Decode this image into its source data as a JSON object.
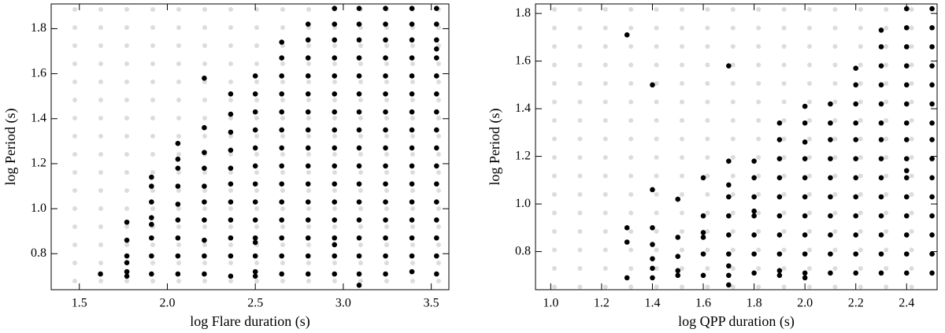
{
  "chart_data": [
    {
      "type": "scatter",
      "xlabel": "log Flare duration (s)",
      "ylabel": "log Period (s)",
      "color": "#000000",
      "xlim": [
        1.34,
        3.6
      ],
      "ylim": [
        0.64,
        1.91
      ],
      "xticks": [
        1.5,
        {
          "value": 2,
          "label": "2.0"
        },
        2.5,
        {
          "value": 3,
          "label": "3.0"
        },
        3.5
      ],
      "yticks": [
        0.8,
        {
          "value": 1,
          "label": "1.0"
        },
        1.2,
        1.4,
        1.6,
        1.8
      ],
      "series": [
        {
          "x": [
            1.62
          ],
          "values": [
            0.71
          ]
        },
        {
          "x": [
            1.77,
            1.77,
            1.77,
            1.77,
            1.77,
            1.77
          ],
          "values": [
            0.7,
            0.72,
            0.76,
            0.79,
            0.86,
            0.94
          ]
        },
        {
          "x": [
            1.91,
            1.91,
            1.91,
            1.91,
            1.91,
            1.91,
            1.91,
            1.91
          ],
          "values": [
            0.71,
            0.79,
            0.87,
            0.93,
            0.96,
            1.03,
            1.1,
            1.14
          ]
        },
        {
          "x": [
            2.06,
            2.06,
            2.06,
            2.06,
            2.06,
            2.06,
            2.06,
            2.06,
            2.06
          ],
          "values": [
            0.71,
            0.79,
            0.87,
            0.95,
            1.02,
            1.1,
            1.18,
            1.22,
            1.29
          ]
        },
        {
          "x": [
            2.21,
            2.21,
            2.21,
            2.21,
            2.21,
            2.21,
            2.21,
            2.21,
            2.21,
            2.21
          ],
          "values": [
            0.71,
            0.79,
            0.86,
            0.95,
            1.03,
            1.1,
            1.18,
            1.25,
            1.36,
            1.58
          ]
        },
        {
          "x": [
            2.36,
            2.36,
            2.36,
            2.36,
            2.36,
            2.36,
            2.36,
            2.36,
            2.36,
            2.36,
            2.36
          ],
          "values": [
            0.7,
            0.79,
            0.87,
            0.95,
            1.03,
            1.11,
            1.18,
            1.26,
            1.34,
            1.42,
            1.51
          ]
        },
        {
          "x": [
            2.5,
            2.5,
            2.5,
            2.5,
            2.5,
            2.5,
            2.5,
            2.5,
            2.5,
            2.5,
            2.5,
            2.5,
            2.5,
            2.5
          ],
          "values": [
            0.7,
            0.72,
            0.79,
            0.85,
            0.87,
            0.95,
            1.03,
            1.11,
            1.19,
            1.27,
            1.35,
            1.43,
            1.51,
            1.59
          ]
        },
        {
          "x": [
            2.65,
            2.65,
            2.65,
            2.65,
            2.65,
            2.65,
            2.65,
            2.65,
            2.65,
            2.65,
            2.65,
            2.65,
            2.65,
            2.65
          ],
          "values": [
            0.71,
            0.79,
            0.87,
            0.95,
            1.03,
            1.11,
            1.19,
            1.27,
            1.35,
            1.43,
            1.51,
            1.59,
            1.67,
            1.74
          ]
        },
        {
          "x": [
            2.8,
            2.8,
            2.8,
            2.8,
            2.8,
            2.8,
            2.8,
            2.8,
            2.8,
            2.8,
            2.8,
            2.8,
            2.8,
            2.8,
            2.8
          ],
          "values": [
            0.71,
            0.79,
            0.87,
            0.95,
            1.03,
            1.11,
            1.19,
            1.27,
            1.35,
            1.43,
            1.51,
            1.59,
            1.67,
            1.75,
            1.82
          ]
        },
        {
          "x": [
            2.95,
            2.95,
            2.95,
            2.95,
            2.95,
            2.95,
            2.95,
            2.95,
            2.95,
            2.95,
            2.95,
            2.95,
            2.95,
            2.95,
            2.95,
            2.95,
            2.95
          ],
          "values": [
            0.71,
            0.79,
            0.84,
            0.87,
            0.95,
            1.03,
            1.11,
            1.19,
            1.27,
            1.35,
            1.43,
            1.51,
            1.59,
            1.67,
            1.75,
            1.82,
            1.89
          ]
        },
        {
          "x": [
            3.09,
            3.09,
            3.09,
            3.09,
            3.09,
            3.09,
            3.09,
            3.09,
            3.09,
            3.09,
            3.09,
            3.09,
            3.09,
            3.09,
            3.09,
            3.09,
            3.09
          ],
          "values": [
            0.66,
            0.71,
            0.79,
            0.87,
            0.95,
            1.03,
            1.11,
            1.19,
            1.27,
            1.35,
            1.43,
            1.51,
            1.59,
            1.67,
            1.75,
            1.82,
            1.89
          ]
        },
        {
          "x": [
            3.24,
            3.24,
            3.24,
            3.24,
            3.24,
            3.24,
            3.24,
            3.24,
            3.24,
            3.24,
            3.24,
            3.24,
            3.24,
            3.24,
            3.24,
            3.24
          ],
          "values": [
            0.71,
            0.79,
            0.87,
            0.95,
            1.03,
            1.11,
            1.19,
            1.27,
            1.35,
            1.43,
            1.51,
            1.59,
            1.67,
            1.75,
            1.82,
            1.89
          ]
        },
        {
          "x": [
            3.39,
            3.39,
            3.39,
            3.39,
            3.39,
            3.39,
            3.39,
            3.39,
            3.39,
            3.39,
            3.39,
            3.39,
            3.39,
            3.39,
            3.39,
            3.39
          ],
          "values": [
            0.72,
            0.79,
            0.87,
            0.95,
            1.03,
            1.11,
            1.19,
            1.27,
            1.35,
            1.43,
            1.51,
            1.59,
            1.67,
            1.75,
            1.82,
            1.89
          ]
        },
        {
          "x": [
            3.53,
            3.53,
            3.53,
            3.53,
            3.53,
            3.53,
            3.53,
            3.53,
            3.53,
            3.53,
            3.53,
            3.53,
            3.53,
            3.53,
            3.53,
            3.53,
            3.53
          ],
          "values": [
            0.71,
            0.79,
            0.87,
            0.95,
            1.03,
            1.11,
            1.19,
            1.27,
            1.35,
            1.43,
            1.51,
            1.59,
            1.67,
            1.71,
            1.75,
            1.82,
            1.89
          ]
        }
      ]
    },
    {
      "type": "scatter",
      "xlabel": "log QPP duration (s)",
      "ylabel": "log Period (s)",
      "color": "#000000",
      "xlim": [
        0.94,
        2.52
      ],
      "ylim": [
        0.64,
        1.84
      ],
      "xticks": [
        {
          "value": 1,
          "label": "1.0"
        },
        1.2,
        1.4,
        1.6,
        1.8,
        {
          "value": 2,
          "label": "2.0"
        },
        2.2,
        2.4
      ],
      "yticks": [
        0.8,
        {
          "value": 1,
          "label": "1.0"
        },
        1.2,
        1.4,
        1.6,
        1.8
      ],
      "series": [
        {
          "x": [
            1.3,
            1.3,
            1.3,
            1.3
          ],
          "values": [
            0.69,
            0.84,
            0.9,
            1.71
          ]
        },
        {
          "x": [
            1.4,
            1.4,
            1.4,
            1.4,
            1.4,
            1.4,
            1.4
          ],
          "values": [
            0.69,
            0.73,
            0.77,
            0.83,
            0.9,
            1.06,
            1.5
          ]
        },
        {
          "x": [
            1.5,
            1.5,
            1.5,
            1.5,
            1.5
          ],
          "values": [
            0.7,
            0.72,
            0.78,
            0.86,
            1.02
          ]
        },
        {
          "x": [
            1.6,
            1.6,
            1.6,
            1.6,
            1.6,
            1.6
          ],
          "values": [
            0.7,
            0.79,
            0.86,
            0.88,
            0.95,
            1.11
          ]
        },
        {
          "x": [
            1.7,
            1.7,
            1.7,
            1.7,
            1.7,
            1.7,
            1.7,
            1.7,
            1.7,
            1.7
          ],
          "values": [
            0.66,
            0.7,
            0.74,
            0.79,
            0.87,
            0.95,
            1.03,
            1.08,
            1.18,
            1.58
          ]
        },
        {
          "x": [
            1.8,
            1.8,
            1.8,
            1.8,
            1.8,
            1.8,
            1.8,
            1.8
          ],
          "values": [
            0.71,
            0.79,
            0.87,
            0.95,
            0.97,
            1.03,
            1.11,
            1.18
          ]
        },
        {
          "x": [
            1.9,
            1.9,
            1.9,
            1.9,
            1.9,
            1.9,
            1.9,
            1.9,
            1.9,
            1.9
          ],
          "values": [
            0.7,
            0.72,
            0.79,
            0.87,
            0.95,
            1.03,
            1.11,
            1.19,
            1.27,
            1.34
          ]
        },
        {
          "x": [
            2,
            2,
            2,
            2,
            2,
            2,
            2,
            2,
            2,
            2,
            2
          ],
          "values": [
            0.69,
            0.71,
            0.79,
            0.87,
            0.95,
            1.03,
            1.11,
            1.19,
            1.26,
            1.34,
            1.41
          ]
        },
        {
          "x": [
            2.1,
            2.1,
            2.1,
            2.1,
            2.1,
            2.1,
            2.1,
            2.1,
            2.1,
            2.1
          ],
          "values": [
            0.71,
            0.79,
            0.87,
            0.95,
            1.03,
            1.11,
            1.19,
            1.27,
            1.34,
            1.42
          ]
        },
        {
          "x": [
            2.2,
            2.2,
            2.2,
            2.2,
            2.2,
            2.2,
            2.2,
            2.2,
            2.2,
            2.2,
            2.2,
            2.2
          ],
          "values": [
            0.71,
            0.79,
            0.87,
            0.95,
            1.03,
            1.11,
            1.19,
            1.27,
            1.34,
            1.42,
            1.5,
            1.57
          ]
        },
        {
          "x": [
            2.3,
            2.3,
            2.3,
            2.3,
            2.3,
            2.3,
            2.3,
            2.3,
            2.3,
            2.3,
            2.3,
            2.3,
            2.3,
            2.3
          ],
          "values": [
            0.71,
            0.79,
            0.87,
            0.95,
            1.03,
            1.11,
            1.19,
            1.27,
            1.34,
            1.42,
            1.5,
            1.58,
            1.66,
            1.73
          ]
        },
        {
          "x": [
            2.4,
            2.4,
            2.4,
            2.4,
            2.4,
            2.4,
            2.4,
            2.4,
            2.4,
            2.4,
            2.4,
            2.4,
            2.4,
            2.4,
            2.4,
            2.4
          ],
          "values": [
            0.71,
            0.79,
            0.87,
            0.95,
            1.03,
            1.11,
            1.14,
            1.19,
            1.27,
            1.34,
            1.42,
            1.5,
            1.58,
            1.66,
            1.74,
            1.82
          ]
        },
        {
          "x": [
            2.5,
            2.5,
            2.5,
            2.5,
            2.5,
            2.5,
            2.5,
            2.5,
            2.5,
            2.5,
            2.5,
            2.5,
            2.5,
            2.5,
            2.5
          ],
          "values": [
            0.71,
            0.79,
            0.87,
            0.95,
            1.03,
            1.11,
            1.19,
            1.27,
            1.34,
            1.42,
            1.5,
            1.58,
            1.66,
            1.74,
            1.82
          ]
        }
      ]
    }
  ]
}
